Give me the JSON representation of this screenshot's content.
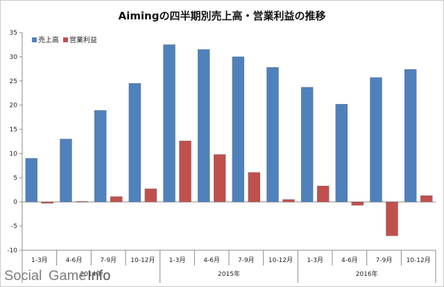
{
  "chart_data": {
    "type": "bar",
    "title": "Aimingの四半期別売上高・営業利益の推移",
    "categories": [
      "1-3月",
      "4-6月",
      "7-9月",
      "10-12月",
      "1-3月",
      "4-6月",
      "7-9月",
      "10-12月",
      "1-3月",
      "4-6月",
      "7-9月",
      "10-12月"
    ],
    "year_groups": [
      {
        "label": "2014年",
        "start": 0,
        "end": 3
      },
      {
        "label": "2015年",
        "start": 4,
        "end": 7
      },
      {
        "label": "2016年",
        "start": 8,
        "end": 11
      }
    ],
    "series": [
      {
        "name": "売上高",
        "color": "#4f81bd",
        "values": [
          9.0,
          13.0,
          18.9,
          24.5,
          32.5,
          31.5,
          30.0,
          27.8,
          23.7,
          20.2,
          25.7,
          27.4
        ]
      },
      {
        "name": "営業利益",
        "color": "#c0504d",
        "values": [
          -0.3,
          0.1,
          1.1,
          2.7,
          12.6,
          9.8,
          6.1,
          0.5,
          3.3,
          -0.7,
          -7.0,
          1.3
        ]
      }
    ],
    "ylim": [
      -10,
      35
    ],
    "yticks": [
      "35",
      "30",
      "25",
      "20",
      "15",
      "10",
      "5",
      "0",
      "-5",
      "-10"
    ],
    "grid": false,
    "legend_position": "top-left"
  },
  "watermark": {
    "social": "Social",
    "game": "Game",
    "info": "Info"
  }
}
